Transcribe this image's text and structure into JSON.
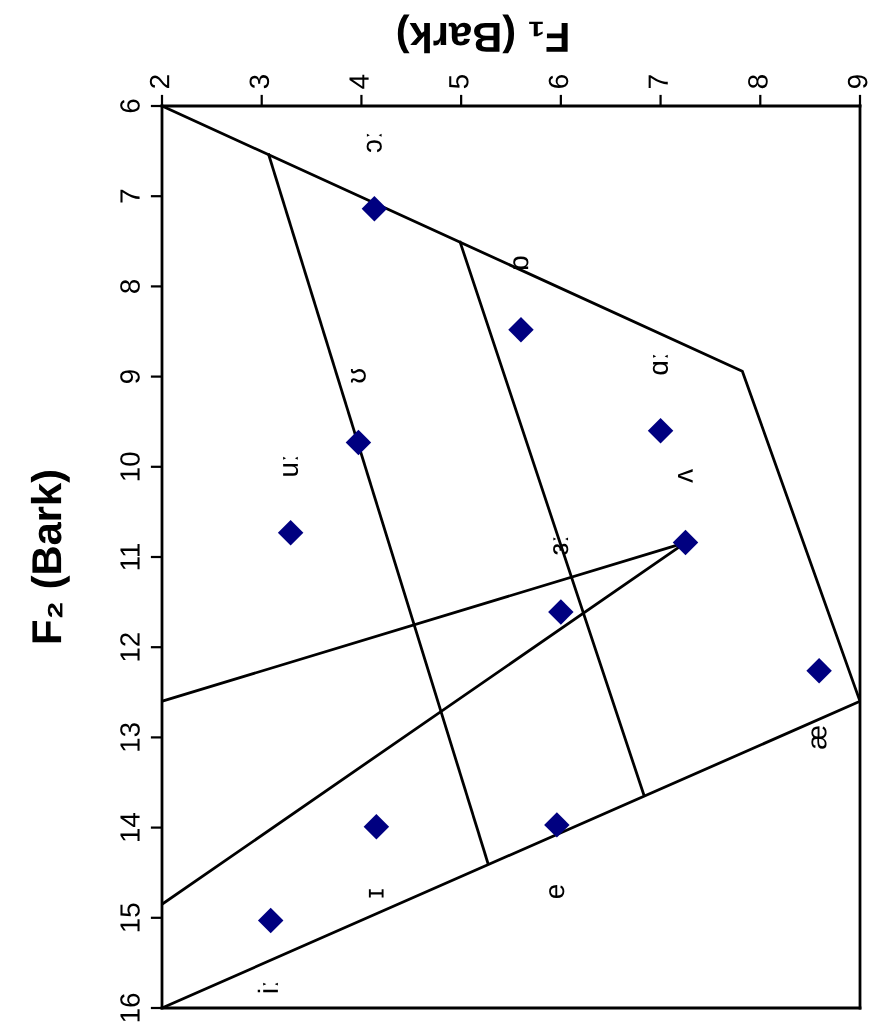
{
  "chart_data": {
    "type": "scatter",
    "xlabel": "F₁ (Bark)",
    "ylabel": "F₂ (Bark)",
    "xlim": [
      2,
      9
    ],
    "xticks": [
      2,
      3,
      4,
      5,
      6,
      7,
      8,
      9
    ],
    "ylim": [
      16,
      6
    ],
    "yticks": [
      6,
      7,
      8,
      9,
      10,
      11,
      12,
      13,
      14,
      15,
      16
    ],
    "series": [
      {
        "type": "line",
        "color": "#000000",
        "x": [
          2,
          7.82,
          9.0,
          2
        ],
        "values": [
          6,
          8.94,
          12.6,
          16
        ]
      },
      {
        "type": "line",
        "color": "#000000",
        "x": [
          3.07,
          5.27
        ],
        "values": [
          6.54,
          14.4
        ]
      },
      {
        "type": "line",
        "color": "#000000",
        "x": [
          4.99,
          6.83
        ],
        "values": [
          7.51,
          13.63
        ]
      },
      {
        "type": "line",
        "color": "#000000",
        "x": [
          2,
          7.25,
          2
        ],
        "values": [
          12.6,
          10.84,
          14.85
        ]
      },
      {
        "color": "#000080",
        "marker": "diamond",
        "x": [
          3.09,
          4.15,
          5.96,
          8.59,
          7.25,
          6.0,
          7.0,
          5.6,
          4.13,
          3.97,
          3.29
        ],
        "values": [
          15.03,
          13.99,
          13.97,
          12.26,
          10.84,
          11.61,
          9.6,
          8.48,
          7.14,
          9.73,
          10.73
        ]
      }
    ],
    "annotations": [
      {
        "text": "iː",
        "x": 3.09,
        "y": 15.03
      },
      {
        "text": "ɪ",
        "x": 4.15,
        "y": 13.99
      },
      {
        "text": "e",
        "x": 5.96,
        "y": 13.97
      },
      {
        "text": "æ",
        "x": 8.59,
        "y": 12.26
      },
      {
        "text": "ʌ",
        "x": 7.25,
        "y": 10.84
      },
      {
        "text": "ɜː",
        "x": 6.0,
        "y": 11.61
      },
      {
        "text": "ɑː",
        "x": 7.0,
        "y": 9.6
      },
      {
        "text": "ɒ",
        "x": 5.6,
        "y": 8.48
      },
      {
        "text": "ɔː",
        "x": 4.13,
        "y": 7.14
      },
      {
        "text": "ʊ",
        "x": 3.97,
        "y": 9.73
      },
      {
        "text": "uː",
        "x": 3.29,
        "y": 10.73
      }
    ]
  }
}
